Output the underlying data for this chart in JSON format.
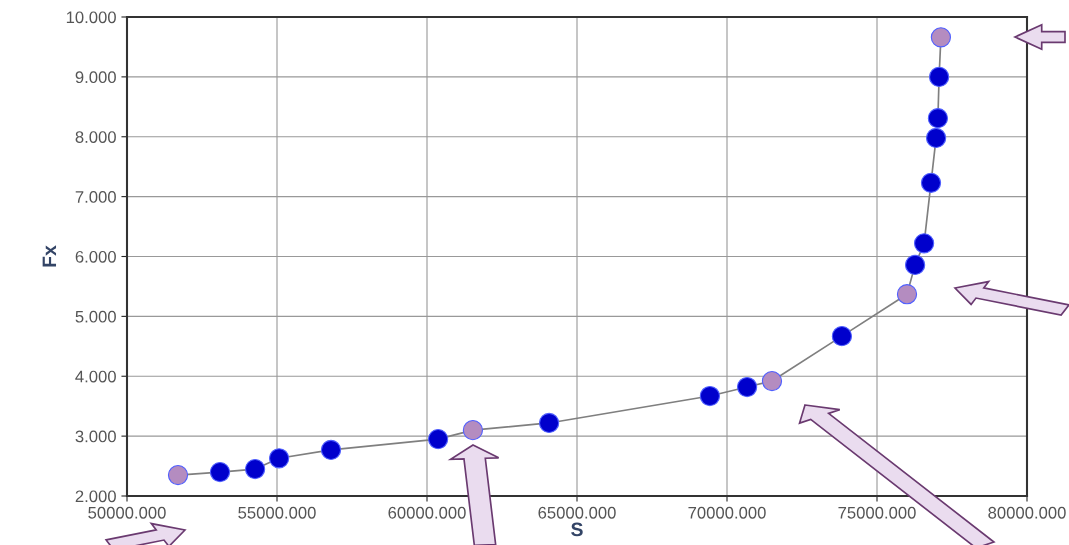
{
  "chart_data": {
    "type": "line",
    "xlabel": "S",
    "ylabel": "Fx",
    "xlim": [
      50000,
      80000
    ],
    "xticks": [
      {
        "value": 50000,
        "label": "50000.000"
      },
      {
        "value": 55000,
        "label": "55000.000"
      },
      {
        "value": 60000,
        "label": "60000.000"
      },
      {
        "value": 65000,
        "label": "65000.000"
      },
      {
        "value": 70000,
        "label": "70000.000"
      },
      {
        "value": 75000,
        "label": "75000.000"
      },
      {
        "value": 80000,
        "label": "80000.000"
      }
    ],
    "ylim": [
      2,
      10
    ],
    "yticks": [
      {
        "value": 2,
        "label": "2.000"
      },
      {
        "value": 3,
        "label": "3.000"
      },
      {
        "value": 4,
        "label": "4.000"
      },
      {
        "value": 5,
        "label": "5.000"
      },
      {
        "value": 6,
        "label": "6.000"
      },
      {
        "value": 7,
        "label": "7.000"
      },
      {
        "value": 8,
        "label": "8.000"
      },
      {
        "value": 9,
        "label": "9.000"
      },
      {
        "value": 10,
        "label": "10.000"
      }
    ],
    "grid": true,
    "marker": "circle",
    "series": [
      {
        "color": "#7f7f7f",
        "x": [
          51700,
          53100,
          54270,
          55070,
          56800,
          60370,
          61530,
          64070,
          69430,
          70670,
          71500,
          73830,
          76000,
          76270,
          76570,
          76800,
          76970,
          77030,
          77070,
          77130
        ],
        "values": [
          2.35,
          2.4,
          2.45,
          2.63,
          2.77,
          2.95,
          3.1,
          3.22,
          3.67,
          3.82,
          3.92,
          4.67,
          5.37,
          5.86,
          6.22,
          7.23,
          7.98,
          8.31,
          9.0,
          9.66
        ],
        "colors": [
          "#b48cc0",
          "#0000cc",
          "#0000cc",
          "#0000cc",
          "#0000cc",
          "#0000cc",
          "#b48cc0",
          "#0000cc",
          "#0000cc",
          "#0000cc",
          "#b48cc0",
          "#0000cc",
          "#b48cc0",
          "#0000cc",
          "#0000cc",
          "#0000cc",
          "#0000cc",
          "#0000cc",
          "#0000cc",
          "#b48cc0"
        ]
      }
    ]
  }
}
